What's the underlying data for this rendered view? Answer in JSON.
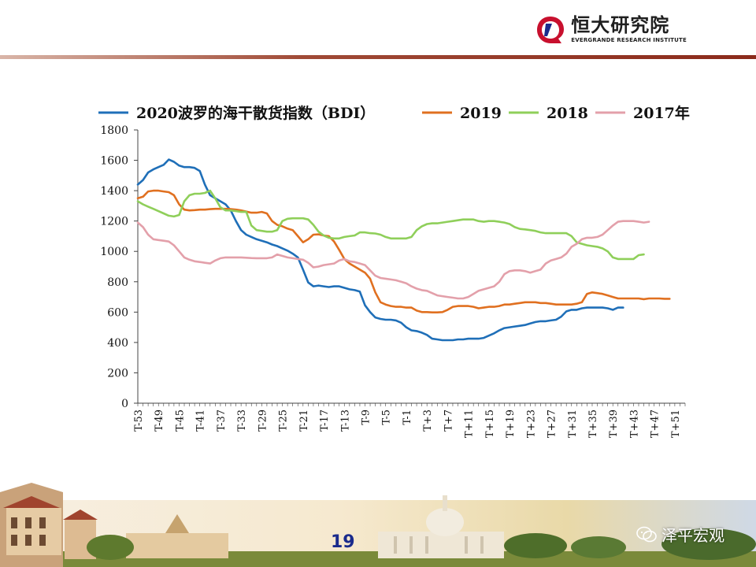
{
  "header": {
    "logo_cn": "恒大研究院",
    "logo_en": "EVERGRANDE RESEARCH INSTITUTE",
    "brand_color": "#c8102e"
  },
  "footer": {
    "page_number": "19",
    "wechat_label": "泽平宏观"
  },
  "chart_data": {
    "type": "line",
    "x": [
      "T-53",
      "T-52",
      "T-51",
      "T-50",
      "T-49",
      "T-48",
      "T-47",
      "T-46",
      "T-45",
      "T-44",
      "T-43",
      "T-42",
      "T-41",
      "T-40",
      "T-39",
      "T-38",
      "T-37",
      "T-36",
      "T-35",
      "T-34",
      "T-33",
      "T-32",
      "T-31",
      "T-30",
      "T-29",
      "T-28",
      "T-27",
      "T-26",
      "T-25",
      "T-24",
      "T-23",
      "T-22",
      "T-21",
      "T-20",
      "T-19",
      "T-18",
      "T-17",
      "T-16",
      "T-15",
      "T-14",
      "T-13",
      "T-12",
      "T-11",
      "T-10",
      "T-9",
      "T-8",
      "T-7",
      "T-6",
      "T-5",
      "T-4",
      "T-3",
      "T-2",
      "T-1",
      "T",
      "T+1",
      "T+2",
      "T+3",
      "T+4",
      "T+5",
      "T+6",
      "T+7",
      "T+8",
      "T+9",
      "T+10",
      "T+11",
      "T+12",
      "T+13",
      "T+14",
      "T+15",
      "T+16",
      "T+17",
      "T+18",
      "T+19",
      "T+20",
      "T+21",
      "T+22",
      "T+23",
      "T+24",
      "T+25",
      "T+26",
      "T+27",
      "T+28",
      "T+29",
      "T+30",
      "T+31",
      "T+32",
      "T+33",
      "T+34",
      "T+35",
      "T+36",
      "T+37",
      "T+38",
      "T+39",
      "T+40",
      "T+41",
      "T+42",
      "T+43",
      "T+44",
      "T+45",
      "T+46",
      "T+47",
      "T+48",
      "T+49",
      "T+50",
      "T+51",
      "T+52",
      "T+53"
    ],
    "x_tick_labels": [
      "T-53",
      "T-49",
      "T-45",
      "T-41",
      "T-37",
      "T-33",
      "T-29",
      "T-25",
      "T-21",
      "T-17",
      "T-13",
      "T-9",
      "T-5",
      "T-1",
      "T+3",
      "T+7",
      "T+11",
      "T+15",
      "T+19",
      "T+23",
      "T+27",
      "T+31",
      "T+35",
      "T+39",
      "T+43",
      "T+47",
      "T+51"
    ],
    "ylim": [
      0,
      1800
    ],
    "y_ticks": [
      0,
      200,
      400,
      600,
      800,
      1000,
      1200,
      1400,
      1600,
      1800
    ],
    "legend_position": "top",
    "grid": false,
    "series": [
      {
        "name": "2020波罗的海干散货指数（BDI）",
        "color": "#1f6fb8",
        "values": [
          1440,
          1470,
          1520,
          1540,
          1555,
          1570,
          1605,
          1590,
          1565,
          1555,
          1555,
          1550,
          1530,
          1440,
          1370,
          1350,
          1330,
          1310,
          1270,
          1200,
          1140,
          1110,
          1095,
          1080,
          1070,
          1060,
          1045,
          1035,
          1020,
          1005,
          985,
          960,
          880,
          795,
          770,
          775,
          770,
          765,
          770,
          770,
          760,
          750,
          745,
          735,
          645,
          600,
          565,
          555,
          550,
          550,
          545,
          530,
          500,
          480,
          475,
          465,
          450,
          425,
          420,
          415,
          415,
          415,
          420,
          420,
          425,
          425,
          425,
          430,
          445,
          460,
          480,
          495,
          500,
          505,
          510,
          515,
          525,
          535,
          540,
          540,
          545,
          550,
          570,
          605,
          615,
          615,
          625,
          630,
          630,
          630,
          630,
          625,
          615,
          630,
          630,
          null,
          null,
          null,
          null,
          null,
          null,
          null,
          null,
          null,
          null,
          null,
          null
        ]
      },
      {
        "name": "2019",
        "color": "#e07020",
        "values": [
          1350,
          1360,
          1395,
          1400,
          1400,
          1395,
          1390,
          1370,
          1310,
          1275,
          1270,
          1272,
          1275,
          1275,
          1278,
          1280,
          1280,
          1280,
          1278,
          1275,
          1270,
          1262,
          1255,
          1255,
          1260,
          1250,
          1200,
          1175,
          1165,
          1150,
          1140,
          1100,
          1060,
          1080,
          1110,
          1112,
          1105,
          1100,
          1065,
          1010,
          950,
          920,
          900,
          880,
          860,
          820,
          730,
          665,
          650,
          640,
          635,
          635,
          630,
          630,
          610,
          600,
          600,
          598,
          598,
          600,
          615,
          635,
          640,
          640,
          640,
          635,
          625,
          630,
          635,
          635,
          640,
          650,
          650,
          655,
          660,
          665,
          665,
          665,
          660,
          660,
          655,
          650,
          650,
          650,
          650,
          655,
          665,
          720,
          730,
          725,
          720,
          710,
          700,
          690,
          690,
          690,
          690,
          690,
          685,
          690,
          690,
          690,
          688,
          688,
          null,
          null,
          null
        ]
      },
      {
        "name": "2018",
        "color": "#8fcf5a",
        "values": [
          1330,
          1310,
          1295,
          1280,
          1265,
          1250,
          1235,
          1230,
          1240,
          1330,
          1370,
          1380,
          1380,
          1385,
          1400,
          1350,
          1290,
          1270,
          1270,
          1265,
          1260,
          1260,
          1170,
          1140,
          1135,
          1130,
          1130,
          1140,
          1200,
          1215,
          1218,
          1218,
          1218,
          1210,
          1175,
          1130,
          1105,
          1090,
          1085,
          1085,
          1095,
          1100,
          1105,
          1125,
          1125,
          1120,
          1118,
          1110,
          1095,
          1085,
          1085,
          1085,
          1085,
          1095,
          1140,
          1165,
          1180,
          1185,
          1185,
          1190,
          1195,
          1200,
          1205,
          1210,
          1210,
          1210,
          1200,
          1195,
          1200,
          1200,
          1195,
          1190,
          1180,
          1160,
          1148,
          1145,
          1140,
          1135,
          1125,
          1120,
          1120,
          1120,
          1120,
          1120,
          1100,
          1060,
          1050,
          1040,
          1035,
          1030,
          1020,
          1000,
          960,
          950,
          950,
          950,
          950,
          975,
          980,
          null,
          null,
          null,
          null,
          null,
          null,
          null,
          null
        ]
      },
      {
        "name": "2017年",
        "color": "#e3a0aa",
        "values": [
          1190,
          1160,
          1110,
          1080,
          1075,
          1070,
          1065,
          1040,
          1000,
          960,
          945,
          935,
          930,
          925,
          920,
          940,
          955,
          960,
          960,
          960,
          960,
          958,
          956,
          955,
          955,
          955,
          960,
          980,
          970,
          960,
          955,
          950,
          945,
          925,
          895,
          900,
          910,
          915,
          920,
          940,
          950,
          935,
          930,
          920,
          910,
          875,
          840,
          825,
          820,
          815,
          810,
          800,
          790,
          770,
          755,
          745,
          740,
          725,
          710,
          705,
          700,
          695,
          690,
          690,
          700,
          720,
          740,
          750,
          760,
          770,
          800,
          850,
          870,
          875,
          875,
          870,
          860,
          870,
          880,
          920,
          940,
          950,
          960,
          985,
          1030,
          1050,
          1080,
          1090,
          1090,
          1095,
          1110,
          1140,
          1170,
          1195,
          1200,
          1200,
          1200,
          1195,
          1190,
          1195,
          null,
          null,
          null,
          null,
          null,
          null,
          null
        ]
      }
    ]
  }
}
